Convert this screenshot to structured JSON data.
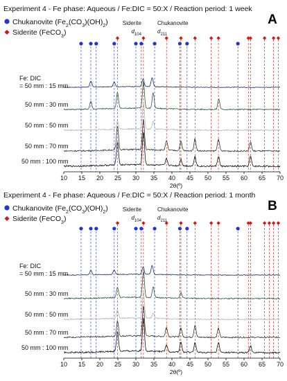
{
  "colors": {
    "chukanovite": "#2233dd",
    "siderite": "#dd1111",
    "traces": [
      "#1a2a5e",
      "#2e5a3a",
      "#b8b8b8",
      "#333333",
      "#111111"
    ]
  },
  "panels": [
    {
      "letter": "A",
      "title": "Experiment 4 - Fe phase: Aqueous / Fe:DIC = 50:X / Reaction period: 1 week",
      "legend": [
        {
          "marker": "circle",
          "text": "Chukanovite (Fe",
          "sub1": "2",
          "mid": "(CO",
          "sub2": "3",
          "end": ")(OH)",
          "sub3": "2",
          "close": ")"
        },
        {
          "marker": "diamond",
          "text": "Siderite (FeCO",
          "sub1": "3",
          "end": ")"
        }
      ],
      "fe_dic_label_1": "Fe: DIC",
      "fe_dic_label_2": "= 50 mm : 15 mm",
      "trace_labels": [
        "50 mm : 30 mm",
        "50 mm : 50 mm",
        "50 mm : 70 mm",
        "50 mm : 100 mm"
      ],
      "annotation_siderite": "Siderite",
      "annotation_siderite_d": "d",
      "annotation_siderite_sub": "104",
      "annotation_chukanovite": "Chukanovite",
      "annotation_chukanovite_d": "d",
      "annotation_chukanovite_sub": "211"
    },
    {
      "letter": "B",
      "title": "Experiment 4 - Fe phase: Aqueous / Fe:DIC = 50:X / Reaction period: 1 month",
      "legend": [
        {
          "marker": "circle",
          "text": "Chukanovite (Fe",
          "sub1": "2",
          "mid": "(CO",
          "sub2": "3",
          "end": ")(OH)",
          "sub3": "2",
          "close": ")"
        },
        {
          "marker": "diamond",
          "text": "Siderite (FeCO",
          "sub1": "3",
          "end": ")"
        }
      ],
      "fe_dic_label_1": "Fe: DIC",
      "fe_dic_label_2": "= 50 mm : 15 mm",
      "trace_labels": [
        "50 mm : 30 mm",
        "50 mm : 50 mm",
        "50 mm : 70 mm",
        "50 mm : 100 mm"
      ],
      "annotation_siderite": "Siderite",
      "annotation_siderite_d": "d",
      "annotation_siderite_sub": "104",
      "annotation_chukanovite": "Chukanovite",
      "annotation_chukanovite_d": "d",
      "annotation_chukanovite_sub": "211"
    }
  ],
  "chart_data": [
    {
      "type": "line",
      "title": "Experiment 4 - Fe phase: Aqueous / Fe:DIC = 50:X / Reaction period: 1 week",
      "xlabel": "2θ(º)",
      "xlim": [
        10,
        70
      ],
      "x_ticks": [
        10,
        15,
        20,
        25,
        30,
        35,
        40,
        45,
        50,
        55,
        60,
        65,
        70
      ],
      "chukanovite_peaks": [
        14.8,
        17.5,
        19.0,
        24.0,
        30.0,
        31.5,
        35.2,
        42.2,
        44.2,
        58.3
      ],
      "siderite_peaks": [
        24.9,
        32.1,
        38.5,
        42.5,
        46.4,
        50.9,
        52.9,
        61.2,
        61.8,
        65.7,
        68.2,
        69.5
      ],
      "series": [
        {
          "name": "= 50 mm : 15 mm",
          "dominant_phase": "chukanovite",
          "peaks": [
            [
              17.5,
              0.4
            ],
            [
              24.0,
              0.3
            ],
            [
              32.0,
              0.5
            ],
            [
              34.5,
              0.6
            ]
          ]
        },
        {
          "name": "50 mm : 30 mm",
          "dominant_phase": "mixed",
          "peaks": [
            [
              17.5,
              0.3
            ],
            [
              24.9,
              0.6
            ],
            [
              32.1,
              1.0
            ],
            [
              34.8,
              0.6
            ],
            [
              53.0,
              0.4
            ]
          ]
        },
        {
          "name": "50 mm : 50 mm",
          "dominant_phase": "mixed",
          "peaks": [
            [
              24.9,
              0.3
            ],
            [
              32.1,
              1.0
            ],
            [
              34.8,
              0.3
            ]
          ]
        },
        {
          "name": "50 mm : 70 mm",
          "dominant_phase": "siderite",
          "peaks": [
            [
              24.9,
              0.8
            ],
            [
              32.1,
              1.0
            ],
            [
              38.5,
              0.3
            ],
            [
              42.5,
              0.3
            ],
            [
              46.4,
              0.4
            ],
            [
              52.9,
              0.4
            ],
            [
              61.8,
              0.3
            ]
          ]
        },
        {
          "name": "50 mm : 100 mm",
          "dominant_phase": "siderite",
          "peaks": [
            [
              24.9,
              0.7
            ],
            [
              32.1,
              1.0
            ],
            [
              38.5,
              0.2
            ],
            [
              42.5,
              0.2
            ],
            [
              46.4,
              0.3
            ],
            [
              52.9,
              0.3
            ],
            [
              61.8,
              0.3
            ]
          ]
        }
      ]
    },
    {
      "type": "line",
      "title": "Experiment 4 - Fe phase: Aqueous / Fe:DIC = 50:X / Reaction period: 1 month",
      "xlabel": "2θ(º)",
      "xlim": [
        10,
        70
      ],
      "x_ticks": [
        10,
        15,
        20,
        25,
        30,
        35,
        40,
        45,
        50,
        55,
        60,
        65,
        70
      ],
      "chukanovite_peaks": [
        14.8,
        17.5,
        19.0,
        24.0,
        30.0,
        31.5,
        35.2,
        42.2,
        44.2,
        58.3
      ],
      "siderite_peaks": [
        24.9,
        32.1,
        38.5,
        42.5,
        46.4,
        50.9,
        52.9,
        61.2,
        61.8,
        65.7,
        67.0,
        68.2,
        69.5
      ],
      "series": [
        {
          "name": "= 50 mm : 15 mm",
          "dominant_phase": "chukanovite",
          "peaks": [
            [
              17.5,
              0.3
            ],
            [
              24.0,
              0.3
            ],
            [
              32.0,
              0.5
            ],
            [
              34.5,
              0.6
            ]
          ]
        },
        {
          "name": "50 mm : 30 mm",
          "dominant_phase": "mixed",
          "peaks": [
            [
              24.9,
              0.4
            ],
            [
              32.1,
              1.0
            ],
            [
              34.8,
              0.4
            ],
            [
              42.5,
              0.2
            ]
          ]
        },
        {
          "name": "50 mm : 50 mm",
          "dominant_phase": "siderite",
          "peaks": [
            [
              24.9,
              0.3
            ],
            [
              32.1,
              1.0
            ],
            [
              34.8,
              0.2
            ]
          ]
        },
        {
          "name": "50 mm : 70 mm",
          "dominant_phase": "siderite",
          "peaks": [
            [
              24.9,
              0.5
            ],
            [
              32.1,
              1.0
            ],
            [
              38.5,
              0.3
            ],
            [
              42.5,
              0.3
            ],
            [
              46.4,
              0.4
            ],
            [
              52.9,
              0.3
            ]
          ]
        },
        {
          "name": "50 mm : 100 mm",
          "dominant_phase": "siderite",
          "peaks": [
            [
              24.9,
              0.6
            ],
            [
              32.1,
              1.0
            ],
            [
              38.5,
              0.2
            ],
            [
              42.5,
              0.3
            ],
            [
              46.4,
              0.3
            ],
            [
              52.9,
              0.3
            ],
            [
              61.8,
              0.2
            ]
          ]
        }
      ]
    }
  ]
}
